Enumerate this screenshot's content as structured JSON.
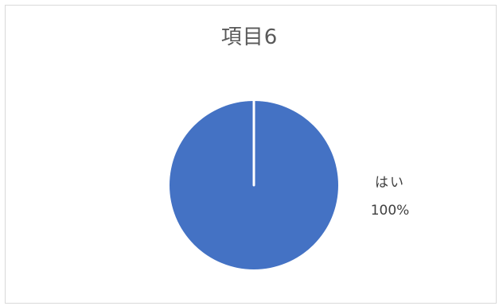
{
  "chart_data": {
    "type": "pie",
    "title": "項目6",
    "categories": [
      "はい"
    ],
    "values": [
      100
    ],
    "percent_labels": [
      "100%"
    ],
    "colors": [
      "#4472c4"
    ],
    "legend": "none",
    "data_labels": "outside-right"
  }
}
